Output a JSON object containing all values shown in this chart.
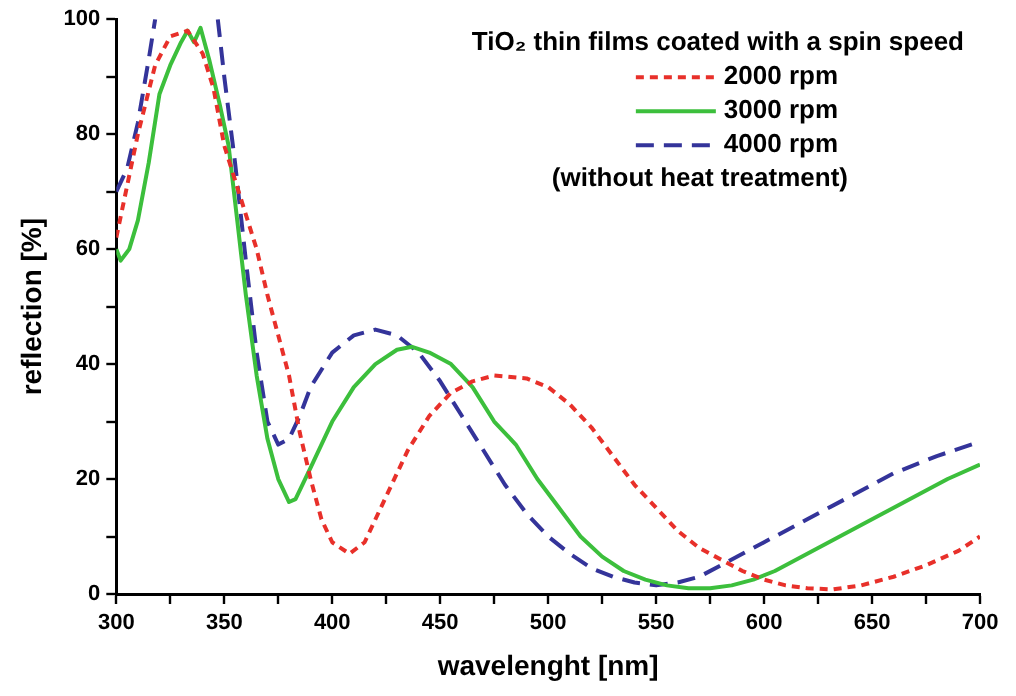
{
  "chart_data": {
    "type": "line",
    "xlabel": "wavelenght [nm]",
    "ylabel": "reflection [%]",
    "legend_title": "TiO₂ thin films coated with a spin speed",
    "annotations": [
      "(without heat treatment)"
    ],
    "xlim": [
      300,
      700
    ],
    "xticks": [
      300,
      {
        "value": 325,
        "label": null
      },
      350,
      {
        "value": 375,
        "label": null
      },
      400,
      {
        "value": 425,
        "label": null
      },
      450,
      {
        "value": 475,
        "label": null
      },
      500,
      {
        "value": 525,
        "label": null
      },
      550,
      {
        "value": 575,
        "label": null
      },
      600,
      {
        "value": 625,
        "label": null
      },
      650,
      {
        "value": 675,
        "label": null
      },
      700
    ],
    "ylim": [
      0,
      100
    ],
    "yticks": [
      0,
      {
        "value": 10,
        "label": null
      },
      20,
      {
        "value": 30,
        "label": null
      },
      40,
      {
        "value": 50,
        "label": null
      },
      60,
      {
        "value": 70,
        "label": null
      },
      80,
      {
        "value": 90,
        "label": null
      },
      100
    ],
    "grid": false,
    "legend": "top right",
    "marker": "none",
    "series": [
      {
        "name": "2000 rpm",
        "color": "#e8302a",
        "line_style": "dotted",
        "x": [
          300,
          310,
          318,
          325,
          333,
          340,
          345,
          350,
          355,
          360,
          365,
          370,
          375,
          380,
          385,
          390,
          395,
          400,
          408,
          415,
          425,
          435,
          445,
          455,
          465,
          475,
          490,
          500,
          510,
          520,
          530,
          540,
          550,
          560,
          570,
          580,
          590,
          600,
          610,
          620,
          632,
          645,
          660,
          675,
          690,
          700
        ],
        "values": [
          62,
          80,
          92,
          97,
          98,
          94,
          88,
          78,
          72,
          66,
          60,
          52,
          45,
          38,
          28,
          20,
          13,
          9,
          7,
          9,
          17,
          25,
          31,
          35,
          37,
          38,
          37.5,
          36,
          33,
          29,
          24,
          19,
          15,
          11,
          8,
          6,
          4,
          2.5,
          1.5,
          1,
          0.8,
          1.5,
          3,
          5,
          7.5,
          10
        ]
      },
      {
        "name": "3000 rpm",
        "color": "#3cbf3c",
        "line_style": "solid",
        "x": [
          300,
          302,
          306,
          310,
          315,
          320,
          325,
          330,
          333,
          336,
          339,
          343,
          348,
          352,
          356,
          360,
          365,
          370,
          375,
          380,
          383,
          390,
          400,
          410,
          420,
          430,
          437,
          445,
          455,
          465,
          475,
          485,
          495,
          505,
          515,
          525,
          535,
          545,
          555,
          565,
          575,
          585,
          595,
          605,
          615,
          625,
          640,
          655,
          670,
          685,
          700
        ],
        "values": [
          60,
          58,
          60,
          65,
          75,
          87,
          92,
          96,
          98,
          96,
          98.5,
          93,
          85,
          78,
          65,
          52,
          38,
          27,
          20,
          16,
          16.5,
          22,
          30,
          36,
          40,
          42.5,
          43,
          42,
          40,
          36,
          30,
          26,
          20,
          15,
          10,
          6.5,
          4,
          2.5,
          1.5,
          1,
          1,
          1.5,
          2.5,
          4,
          6,
          8,
          11,
          14,
          17,
          20,
          22.5
        ]
      },
      {
        "name": "4000 rpm",
        "color": "#34349a",
        "line_style": "dashed",
        "x": [
          300,
          305,
          310,
          315,
          318,
          330,
          347,
          350,
          355,
          360,
          365,
          370,
          375,
          380,
          385,
          390,
          400,
          410,
          420,
          430,
          440,
          450,
          460,
          470,
          480,
          490,
          500,
          510,
          520,
          530,
          540,
          550,
          560,
          570,
          580,
          590,
          600,
          620,
          640,
          660,
          680,
          700
        ],
        "values": [
          70,
          74,
          82,
          93,
          100,
          null,
          100,
          90,
          75,
          58,
          42,
          30,
          26,
          27,
          31,
          36,
          42,
          45,
          46,
          45,
          42,
          37,
          31,
          25,
          19,
          14,
          10,
          7,
          4.5,
          3,
          2,
          1.5,
          2,
          3,
          5,
          7,
          9,
          13,
          17,
          21,
          24,
          26.5
        ]
      }
    ]
  }
}
